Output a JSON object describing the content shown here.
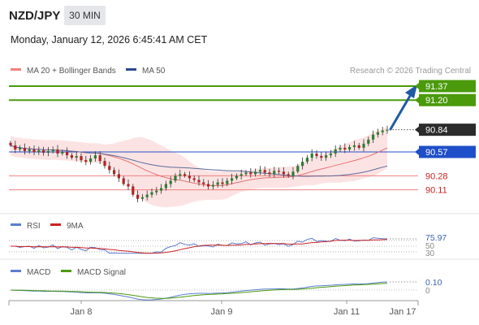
{
  "header": {
    "symbol": "NZD/JPY",
    "timeframe": "30 MIN",
    "datetime": "Monday, January 12, 2026 6:45:41 AM CET"
  },
  "legend": {
    "ma20_bb": "MA 20 + Bollinger Bands",
    "ma50": "MA 50",
    "credit": "Research © 2026 Trading Central"
  },
  "colors": {
    "candle_up": "#2e7d32",
    "candle_down": "#b22222",
    "ma20": "#e57373",
    "ma50": "#5c6b9c",
    "bb_fill": "#fbd9d9",
    "target_green": "#4a9a0c",
    "pivot_blue": "#1f4fc8",
    "support_red": "#f08080",
    "price_dark": "#2b2b2b",
    "arrow": "#1f5aa6",
    "rsi": "#5b7ccf",
    "rsi_ma": "#cc2222",
    "macd": "#5b7ccf",
    "macd_signal": "#4a9a0c"
  },
  "chart_data": [
    {
      "type": "candlestick",
      "name": "NZD/JPY price",
      "x_ticks": [
        "Jan 8",
        "Jan 9",
        "Jan 11",
        "Jan 17"
      ],
      "ylim": [
        89.7,
        91.5
      ],
      "levels": [
        {
          "label": "91.37",
          "value": 91.37,
          "kind": "target"
        },
        {
          "label": "91.20",
          "value": 91.2,
          "kind": "target"
        },
        {
          "label": "90.84",
          "value": 90.84,
          "kind": "last"
        },
        {
          "label": "90.57",
          "value": 90.57,
          "kind": "pivot"
        },
        {
          "label": "90.28",
          "value": 90.28,
          "kind": "support"
        },
        {
          "label": "90.11",
          "value": 90.11,
          "kind": "support"
        }
      ],
      "close": [
        90.65,
        90.6,
        90.62,
        90.58,
        90.6,
        90.57,
        90.59,
        90.56,
        90.58,
        90.6,
        90.55,
        90.57,
        90.53,
        90.5,
        90.52,
        90.47,
        90.45,
        90.49,
        90.53,
        90.46,
        90.4,
        90.35,
        90.3,
        90.25,
        90.18,
        90.15,
        90.05,
        90.0,
        90.02,
        90.05,
        90.08,
        90.1,
        90.13,
        90.18,
        90.22,
        90.28,
        90.3,
        90.28,
        90.25,
        90.23,
        90.2,
        90.18,
        90.15,
        90.17,
        90.2,
        90.18,
        90.22,
        90.25,
        90.28,
        90.3,
        90.32,
        90.3,
        90.33,
        90.35,
        90.32,
        90.3,
        90.34,
        90.33,
        90.3,
        90.28,
        90.33,
        90.4,
        90.45,
        90.5,
        90.55,
        90.52,
        90.5,
        90.53,
        90.55,
        90.6,
        90.62,
        90.6,
        90.63,
        90.65,
        90.62,
        90.67,
        90.72,
        90.78,
        90.81,
        90.83,
        90.84
      ]
    },
    {
      "type": "line",
      "name": "RSI",
      "series_label": "RSI",
      "ma_label": "9MA",
      "y_ticks": [
        "75.97",
        "50",
        "30"
      ],
      "current": 75.97,
      "ylim": [
        20,
        85
      ]
    },
    {
      "type": "line",
      "name": "MACD",
      "series_label": "MACD",
      "signal_label": "MACD Signal",
      "y_ticks": [
        "0.10",
        "0"
      ],
      "current": 0.1,
      "ylim": [
        -0.3,
        0.18
      ]
    }
  ],
  "panels": {
    "rsi_label": "RSI",
    "rsi_ma_label": "9MA",
    "macd_label": "MACD",
    "macd_signal_label": "MACD Signal"
  }
}
